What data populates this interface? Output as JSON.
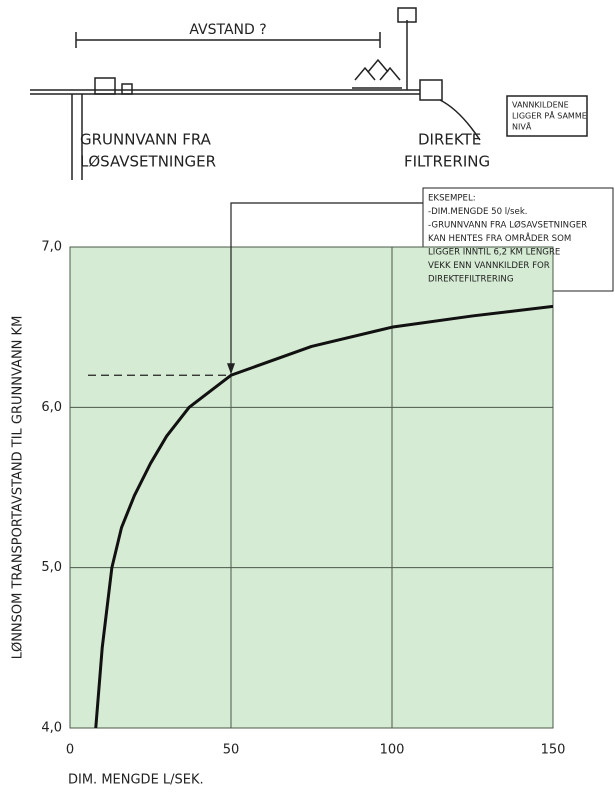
{
  "chart_data": {
    "type": "line",
    "y_label": "LØNNSOM TRANSPORTAVSTAND TIL GRUNNVANN  KM",
    "x_label": "DIM. MENGDE   L/SEK.",
    "x": [
      8,
      10,
      13,
      16,
      20,
      25,
      30,
      37,
      50,
      75,
      100,
      125,
      150
    ],
    "values": [
      4.0,
      4.5,
      5.0,
      5.25,
      5.45,
      5.65,
      5.82,
      6.0,
      6.2,
      6.38,
      6.5,
      6.57,
      6.63
    ],
    "color": "#111111",
    "xlim": [
      0,
      150
    ],
    "xticks": [
      0,
      50,
      100,
      150
    ],
    "ylim": [
      4,
      7
    ],
    "yticks": [
      {
        "value": 4,
        "label": "4,0"
      },
      {
        "value": 5,
        "label": "5,0"
      },
      {
        "value": 6,
        "label": "6,0"
      },
      {
        "value": 7,
        "label": "7,0"
      }
    ],
    "grid": true,
    "background": "#d5ebd3",
    "example": {
      "x": 50,
      "y": 6.2
    },
    "annotation": [
      "EKSEMPEL:",
      "-DIM.MENGDE 50 l/sek.",
      "-GRUNNVANN FRA LØSAVSETNINGER",
      "KAN HENTES FRA OMRÅDER SOM",
      "LIGGER INNTIL 6,2 KM LENGRE",
      "VEKK ENN VANNKILDER FOR",
      "DIREKTEFILTRERING"
    ]
  },
  "diagram": {
    "distance": "AVSTAND ?",
    "left": [
      "GRUNNVANN FRA",
      "LØSAVSETNINGER"
    ],
    "right": [
      "DIREKTE",
      "FILTRERING"
    ],
    "note": [
      "VANNKILDENE",
      "LIGGER PÅ SAMME",
      "NIVÅ"
    ]
  }
}
